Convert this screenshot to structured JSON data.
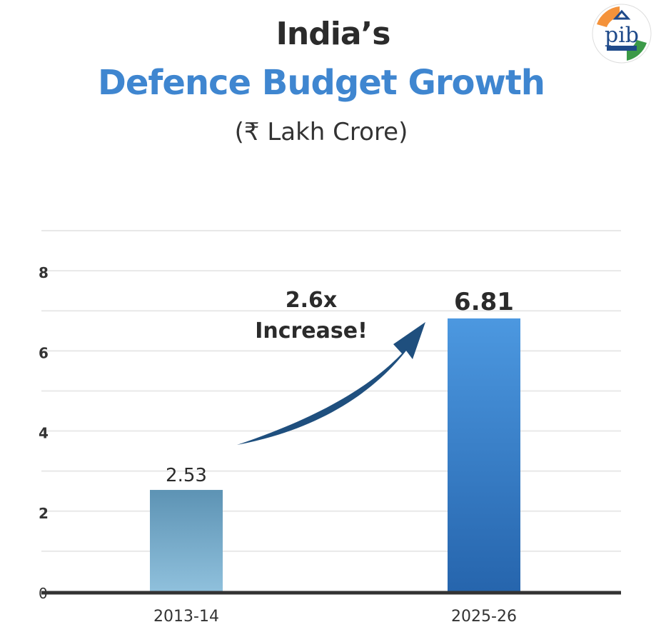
{
  "header": {
    "title_line1": "India’s",
    "title_line2": "Defence Budget Growth",
    "subtitle": "(₹ Lakh Crore)"
  },
  "logo": {
    "name": "pib-logo",
    "text": "pib"
  },
  "colors": {
    "title_blue": "#3f86d0",
    "bar_2013": "#6fa6c6",
    "bar_2025": "#3c83d0",
    "arrow": "#1f4f7e",
    "axis": "#333333",
    "grid": "#e8e8e8"
  },
  "annotation": {
    "line1": "2.6x",
    "line2": "Increase!"
  },
  "chart_data": {
    "type": "bar",
    "title": "Defence Budget Growth",
    "categories": [
      "2013-14",
      "2025-26"
    ],
    "values": [
      2.53,
      6.81
    ],
    "value_labels": [
      "2.53",
      "6.81"
    ],
    "ylim": [
      0,
      9
    ],
    "yticks": [
      0,
      2,
      4,
      6,
      8
    ],
    "ytick_labels": [
      "0",
      "2",
      "4",
      "6",
      "8"
    ],
    "grid": true,
    "legend": "none"
  }
}
